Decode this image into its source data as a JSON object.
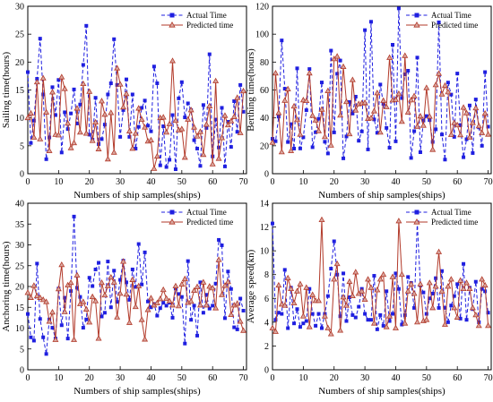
{
  "figure": {
    "panels": [
      {
        "id": "sailing",
        "chart_data": {
          "type": "line",
          "xlabel": "Numbers of ship samples(ships)",
          "ylabel": "Sailing time(hours)",
          "xlim": [
            0,
            71
          ],
          "ylim": [
            0,
            30
          ],
          "xticks": [
            0,
            10,
            20,
            30,
            40,
            50,
            60,
            70
          ],
          "yticks": [
            0,
            5,
            10,
            15,
            20,
            25,
            30
          ],
          "legend_position": "top-right",
          "series": [
            {
              "name": "Actual Time",
              "color": "#1f1fe0",
              "marker": "square",
              "line": "dashed",
              "values": [
                18.2,
                5.5,
                9.5,
                17.0,
                24.2,
                14.2,
                2.6,
                6.5,
                15.5,
                10.5,
                16.8,
                3.8,
                11.0,
                8.0,
                10.8,
                15.1,
                9.0,
                12.4,
                19.5,
                26.5,
                7.0,
                6.1,
                13.6,
                5.3,
                6.2,
                8.8,
                14.2,
                16.2,
                24.1,
                15.9,
                6.6,
                11.4,
                16.9,
                6.6,
                14.2,
                4.5,
                8.4,
                11.8,
                13.1,
                8.6,
                7.6,
                19.2,
                16.2,
                1.5,
                8.5,
                1.2,
                2.5,
                10.5,
                0.8,
                13.5,
                16.4,
                10.1,
                12.6,
                11.4,
                6.0,
                4.5,
                1.4,
                12.3,
                8.2,
                21.4,
                3.1,
                9.7,
                4.7,
                11.8,
                1.3,
                9.3,
                4.8,
                13.0,
                7.5,
                15.9,
                11.1
              ]
            },
            {
              "name": "Predicted time",
              "color": "#b23a2a",
              "marker": "triangle",
              "line": "solid",
              "values": [
                10.0,
                10.8,
                6.5,
                16.4,
                6.2,
                17.1,
                11.0,
                4.1,
                14.6,
                7.0,
                6.9,
                17.3,
                15.2,
                9.0,
                4.6,
                5.5,
                11.7,
                7.4,
                16.1,
                7.2,
                14.7,
                5.9,
                9.2,
                4.4,
                13.0,
                10.6,
                2.6,
                10.9,
                3.8,
                18.9,
                16.0,
                11.9,
                14.3,
                7.6,
                4.5,
                7.2,
                11.7,
                9.7,
                8.3,
                5.8,
                6.0,
                0.9,
                3.1,
                10.0,
                10.1,
                7.4,
                8.9,
                20.2,
                9.5,
                7.8,
                8.0,
                2.9,
                9.7,
                11.4,
                8.3,
                6.7,
                7.5,
                3.4,
                8.8,
                12.1,
                1.7,
                16.6,
                2.7,
                6.4,
                10.4,
                8.7,
                9.4,
                10.2,
                13.6,
                7.3,
                14.8
              ]
            }
          ]
        }
      },
      {
        "id": "berthing",
        "chart_data": {
          "type": "line",
          "xlabel": "Numbers of ship samples(ships)",
          "ylabel": "Berthing time(hours)",
          "xlim": [
            0,
            71
          ],
          "ylim": [
            0,
            120
          ],
          "xticks": [
            0,
            10,
            20,
            30,
            40,
            50,
            60,
            70
          ],
          "yticks": [
            0,
            20,
            40,
            60,
            80,
            100,
            120
          ],
          "legend_position": "top-right",
          "series": [
            {
              "name": "Actual Time",
              "color": "#1f1fe0",
              "marker": "square",
              "line": "dashed",
              "values": [
                25.0,
                23.3,
                40.9,
                95.5,
                60.9,
                22.7,
                35.5,
                18.0,
                75.5,
                18.1,
                26.1,
                45.5,
                75.0,
                19.0,
                29.7,
                39.4,
                65.4,
                22.9,
                14.5,
                88.2,
                29.6,
                71.6,
                81.1,
                11.0,
                26.7,
                51.4,
                43.1,
                55.2,
                23.6,
                30.3,
                102.9,
                17.4,
                108.9,
                38.9,
                29.3,
                63.9,
                50.0,
                32.8,
                18.6,
                92.4,
                23.2,
                118.5,
                54.2,
                71.2,
                73.8,
                11.3,
                30.5,
                83.2,
                15.4,
                38.1,
                41.3,
                38.4,
                22.8,
                31.8,
                108.5,
                28.1,
                10.1,
                65.3,
                56.7,
                26.4,
                71.8,
                34.9,
                11.8,
                24.7,
                48.9,
                14.8,
                53.2,
                33.2,
                20.0,
                72.8,
                33.7
              ]
            },
            {
              "name": "Predicted time",
              "color": "#b23a2a",
              "marker": "triangle",
              "line": "solid",
              "values": [
                22.3,
                72.0,
                43.5,
                15.5,
                52.4,
                60.6,
                16.4,
                48.3,
                38.6,
                28.1,
                52.7,
                52.2,
                72.0,
                41.6,
                38.3,
                30.6,
                46.0,
                26.4,
                59.3,
                20.3,
                82.2,
                84.0,
                41.8,
                76.6,
                51.5,
                28.4,
                67.2,
                45.4,
                49.9,
                50.5,
                50.8,
                39.4,
                39.8,
                44.8,
                57.8,
                29.6,
                52.3,
                47.8,
                83.1,
                52.6,
                53.0,
                57.2,
                37.3,
                84.5,
                44.0,
                52.7,
                55.6,
                33.8,
                41.2,
                34.5,
                61.5,
                41.0,
                17.2,
                63.6,
                71.7,
                56.9,
                63.1,
                58.5,
                27.9,
                36.4,
                34.8,
                27.7,
                47.4,
                43.4,
                26.1,
                36.4,
                47.0,
                34.1,
                29.2,
                43.1,
                28.1
              ]
            }
          ]
        }
      },
      {
        "id": "anchoring",
        "chart_data": {
          "type": "line",
          "xlabel": "Numbers of ship samples(ships)",
          "ylabel": "Anchoring time(hours)",
          "xlim": [
            0,
            71
          ],
          "ylim": [
            0,
            40
          ],
          "xticks": [
            0,
            10,
            20,
            30,
            40,
            50,
            60,
            70
          ],
          "yticks": [
            0,
            5,
            10,
            15,
            20,
            25,
            30,
            35,
            40
          ],
          "legend_position": "top-right",
          "series": [
            {
              "name": "Actual Time",
              "color": "#1f1fe0",
              "marker": "square",
              "line": "dashed",
              "values": [
                13.4,
                7.8,
                7.0,
                25.5,
                12.2,
                7.8,
                3.8,
                12.1,
                10.1,
                7.5,
                19.5,
                10.7,
                17.3,
                7.5,
                18.9,
                36.8,
                19.7,
                17.5,
                10.1,
                12.1,
                22.1,
                20.1,
                24.1,
                25.7,
                12.8,
                13.7,
                26.0,
                15.0,
                23.8,
                16.3,
                21.6,
                26.2,
                21.0,
                16.8,
                24.1,
                19.9,
                30.2,
                20.5,
                28.2,
                16.4,
                15.0,
                15.8,
                13.0,
                14.8,
                16.1,
                15.4,
                16.1,
                12.5,
                19.5,
                18.2,
                17.5,
                6.3,
                26.1,
                12.0,
                15.4,
                8.2,
                21.0,
                13.7,
                18.0,
                14.7,
                15.4,
                20.7,
                31.2,
                29.9,
                12.4,
                23.6,
                19.4,
                10.2,
                9.7,
                17.1,
                14.2
              ]
            },
            {
              "name": "Predicted time",
              "color": "#b23a2a",
              "marker": "triangle",
              "line": "solid",
              "values": [
                18.5,
                17.3,
                20.2,
                17.7,
                17.3,
                16.8,
                16.3,
                11.6,
                13.8,
                7.2,
                19.4,
                25.2,
                13.9,
                20.3,
                20.9,
                7.2,
                22.7,
                15.8,
                16.3,
                14.5,
                11.4,
                17.5,
                16.5,
                7.5,
                20.9,
                17.9,
                20.1,
                22.2,
                21.0,
                12.6,
                18.3,
                26.0,
                18.1,
                11.3,
                21.6,
                15.1,
                20.1,
                12.0,
                7.3,
                14.4,
                17.2,
                15.5,
                16.0,
                17.0,
                19.2,
                17.1,
                16.5,
                15.5,
                20.1,
                15.3,
                20.5,
                21.8,
                16.1,
                16.4,
                19.0,
                19.9,
                15.5,
                21.0,
                15.5,
                20.0,
                19.6,
                14.8,
                26.4,
                18.0,
                20.2,
                21.1,
                13.2,
                15.5,
                15.9,
                11.6,
                9.4
              ]
            }
          ]
        }
      },
      {
        "id": "speed",
        "chart_data": {
          "type": "line",
          "xlabel": "Numbers of ship samples(ships)",
          "ylabel": "Average speed(kn)",
          "xlim": [
            0,
            71
          ],
          "ylim": [
            0,
            14
          ],
          "xticks": [
            0,
            10,
            20,
            30,
            40,
            50,
            60,
            70
          ],
          "yticks": [
            0,
            2,
            4,
            6,
            8,
            10,
            12,
            14
          ],
          "legend_position": "top-right",
          "series": [
            {
              "name": "Actual Time",
              "color": "#1f1fe0",
              "marker": "square",
              "line": "dashed",
              "values": [
                12.3,
                4.2,
                4.8,
                4.7,
                8.4,
                3.5,
                6.9,
                3.9,
                5.1,
                3.6,
                3.9,
                4.1,
                6.8,
                4.7,
                3.7,
                4.7,
                3.5,
                4.7,
                6.2,
                8.5,
                10.8,
                8.0,
                4.5,
                8.1,
                4.1,
                6.1,
                4.6,
                4.4,
                5.3,
                6.8,
                4.7,
                4.2,
                4.2,
                7.9,
                3.4,
                4.6,
                3.7,
                6.6,
                4.1,
                4.7,
                8.1,
                6.8,
                3.8,
                4.6,
                7.8,
                7.3,
                5.2,
                12.4,
                7.1,
                6.5,
                4.7,
                6.0,
                6.4,
                7.7,
                5.2,
                8.3,
                5.2,
                4.0,
                5.4,
                6.2,
                7.2,
                4.3,
                8.9,
                4.2,
                6.9,
                5.1,
                7.4,
                4.0,
                6.8,
                6.6,
                4.8
              ]
            },
            {
              "name": "Predicted time",
              "color": "#b23a2a",
              "marker": "triangle",
              "line": "solid",
              "values": [
                3.5,
                3.2,
                7.1,
                5.5,
                5.4,
                7.7,
                6.8,
                5.6,
                6.6,
                7.2,
                4.5,
                6.9,
                3.6,
                6.3,
                5.8,
                5.8,
                12.6,
                4.5,
                3.5,
                3.0,
                7.6,
                8.9,
                3.3,
                6.1,
                5.4,
                7.4,
                6.2,
                8.2,
                6.4,
                6.6,
                5.9,
                7.6,
                6.9,
                3.9,
                6.7,
                7.6,
                8.0,
                3.6,
                4.5,
                7.8,
                3.5,
                12.5,
                8.0,
                3.9,
                6.6,
                7.2,
                6.4,
                4.0,
                7.2,
                4.1,
                4.2,
                7.3,
                5.2,
                7.0,
                9.9,
                6.6,
                3.8,
                7.0,
                7.6,
                5.2,
                4.4,
                7.5,
                6.8,
                7.3,
                6.8,
                5.2,
                4.6,
                3.7,
                7.6,
                7.1,
                3.7
              ]
            }
          ]
        }
      }
    ]
  }
}
